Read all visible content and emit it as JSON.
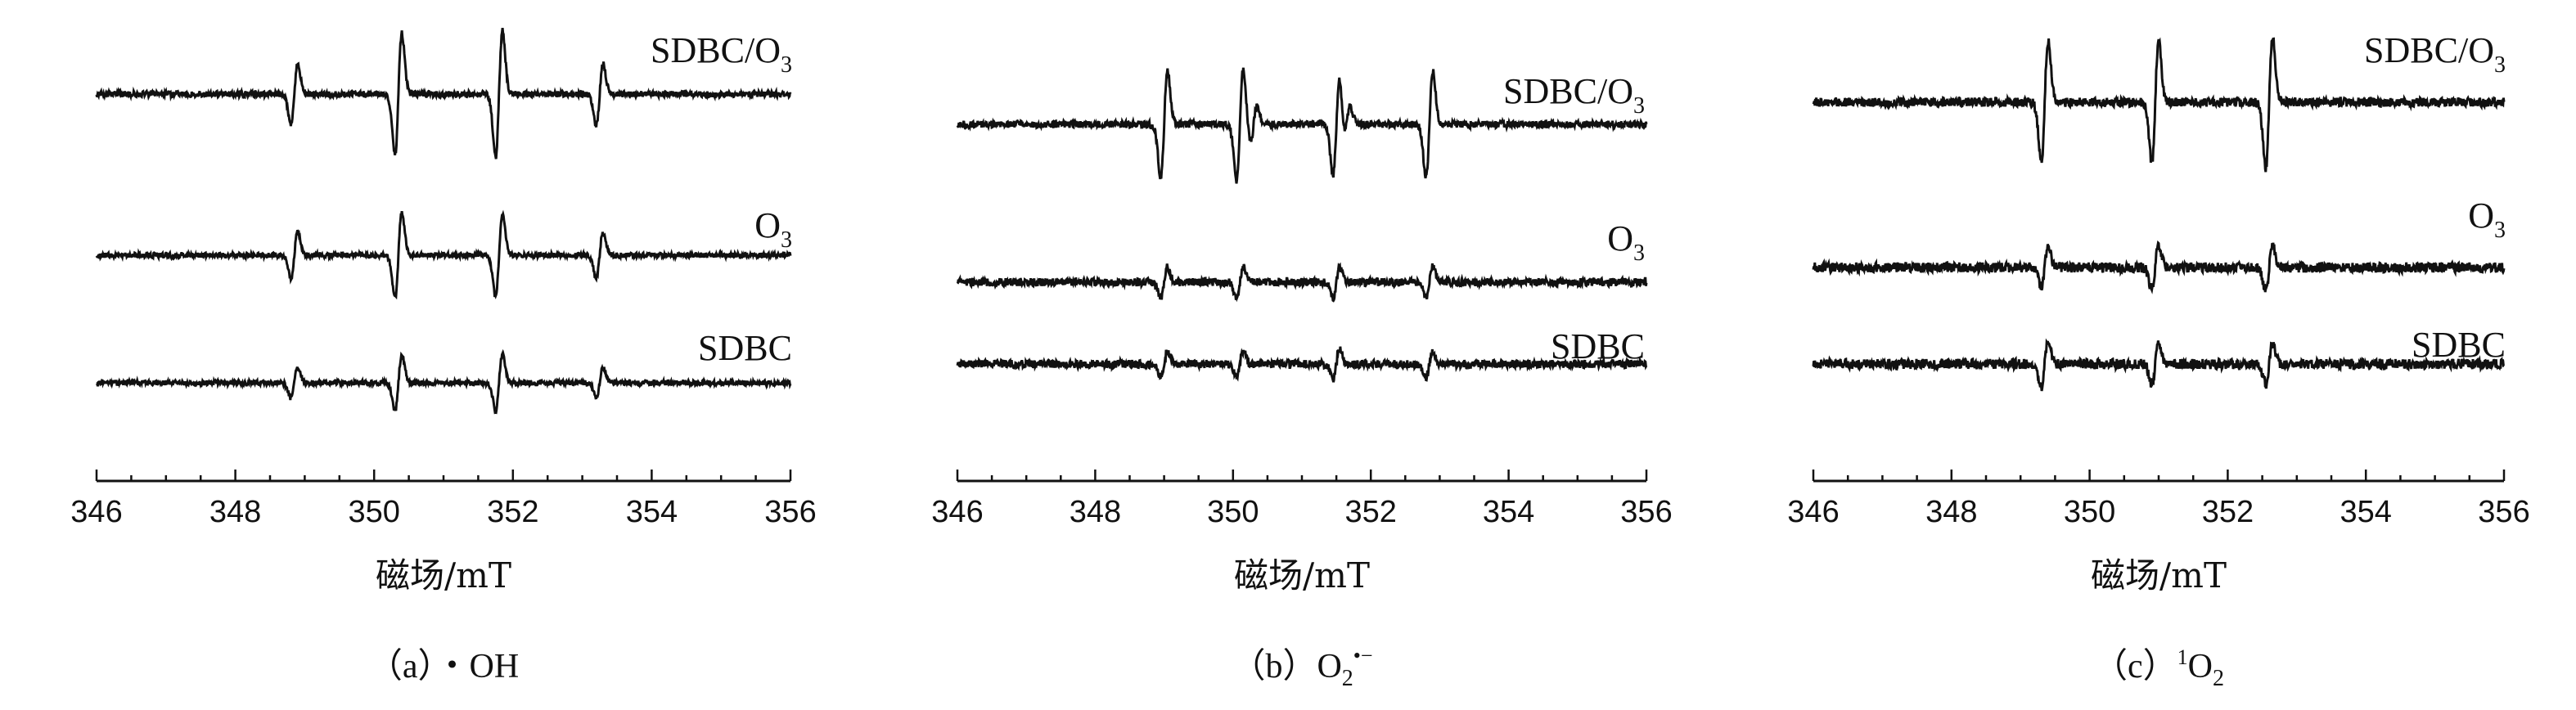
{
  "chart_data": [
    {
      "type": "line",
      "caption": {
        "prefix": "（a）",
        "species": "・OH",
        "sub": "",
        "sup": ""
      },
      "xlabel": "磁场/mT",
      "xlim": [
        346,
        356
      ],
      "xticks": [
        346,
        348,
        350,
        352,
        354,
        356
      ],
      "ylabel": "",
      "grid": false,
      "series": [
        {
          "label_main": "SDBC/O",
          "label_sub": "3",
          "baseline": 0.0,
          "peaks": [
            {
              "x": 348.85,
              "amp": 0.6
            },
            {
              "x": 350.35,
              "amp": 1.2
            },
            {
              "x": 351.8,
              "amp": 1.25
            },
            {
              "x": 353.25,
              "amp": 0.6
            }
          ],
          "noise": 0.06
        },
        {
          "label_main": "O",
          "label_sub": "3",
          "baseline": -2.1,
          "peaks": [
            {
              "x": 348.85,
              "amp": 0.45
            },
            {
              "x": 350.35,
              "amp": 0.85
            },
            {
              "x": 351.8,
              "amp": 0.8
            },
            {
              "x": 353.25,
              "amp": 0.45
            }
          ],
          "noise": 0.05
        },
        {
          "label_main": "SDBC",
          "label_sub": "",
          "baseline": -3.7,
          "peaks": [
            {
              "x": 348.85,
              "amp": 0.3
            },
            {
              "x": 350.35,
              "amp": 0.55
            },
            {
              "x": 351.8,
              "amp": 0.55
            },
            {
              "x": 353.25,
              "amp": 0.3
            }
          ],
          "noise": 0.05
        }
      ]
    },
    {
      "type": "line",
      "caption": {
        "prefix": "（b）",
        "species": "O",
        "sub": "2",
        "sup": "•−"
      },
      "xlabel": "磁场/mT",
      "xlim": [
        346,
        356
      ],
      "xticks": [
        346,
        348,
        350,
        352,
        354,
        356
      ],
      "ylabel": "",
      "grid": false,
      "series": [
        {
          "label_main": "SDBC/O",
          "label_sub": "3",
          "baseline": 0.0,
          "peaks": [
            {
              "x": 349.0,
              "amp": 1.05
            },
            {
              "x": 350.1,
              "amp": 1.1
            },
            {
              "x": 350.3,
              "amp": 0.35
            },
            {
              "x": 351.5,
              "amp": 1.0
            },
            {
              "x": 351.65,
              "amp": 0.35
            },
            {
              "x": 352.85,
              "amp": 1.05
            }
          ],
          "noise": 0.07
        },
        {
          "label_main": "O",
          "label_sub": "3",
          "baseline": -2.0,
          "peaks": [
            {
              "x": 349.0,
              "amp": 0.3
            },
            {
              "x": 350.1,
              "amp": 0.3
            },
            {
              "x": 351.5,
              "amp": 0.3
            },
            {
              "x": 352.85,
              "amp": 0.3
            }
          ],
          "noise": 0.08
        },
        {
          "label_main": "SDBC",
          "label_sub": "",
          "baseline": -3.1,
          "peaks": [
            {
              "x": 349.0,
              "amp": 0.25
            },
            {
              "x": 350.1,
              "amp": 0.25
            },
            {
              "x": 351.5,
              "amp": 0.3
            },
            {
              "x": 352.85,
              "amp": 0.25
            }
          ],
          "noise": 0.08
        }
      ]
    },
    {
      "type": "line",
      "caption": {
        "prefix": "（c）",
        "species": "O",
        "sub": "2",
        "sup": "1"
      },
      "xlabel": "磁场/mT",
      "xlim": [
        346,
        356
      ],
      "xticks": [
        346,
        348,
        350,
        352,
        354,
        356
      ],
      "ylabel": "",
      "grid": false,
      "series": [
        {
          "label_main": "SDBC/O",
          "label_sub": "3",
          "baseline": 0.0,
          "peaks": [
            {
              "x": 349.35,
              "amp": 1.2
            },
            {
              "x": 350.95,
              "amp": 1.2
            },
            {
              "x": 352.6,
              "amp": 1.3
            }
          ],
          "noise": 0.09
        },
        {
          "label_main": "O",
          "label_sub": "3",
          "baseline": -2.1,
          "peaks": [
            {
              "x": 349.35,
              "amp": 0.4
            },
            {
              "x": 350.95,
              "amp": 0.45
            },
            {
              "x": 352.6,
              "amp": 0.45
            }
          ],
          "noise": 0.1
        },
        {
          "label_main": "SDBC",
          "label_sub": "",
          "baseline": -3.3,
          "peaks": [
            {
              "x": 349.35,
              "amp": 0.45
            },
            {
              "x": 350.95,
              "amp": 0.4
            },
            {
              "x": 352.6,
              "amp": 0.4
            }
          ],
          "noise": 0.1
        }
      ]
    }
  ]
}
